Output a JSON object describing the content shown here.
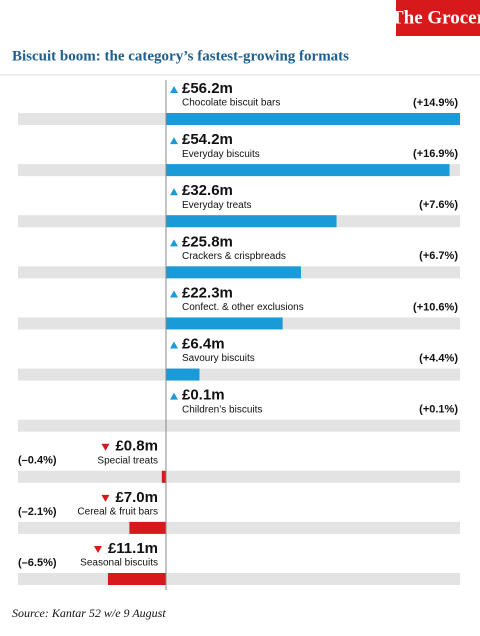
{
  "brand": "The Grocer",
  "source": "Source: Kantar 52 w/e 9 August",
  "chart_data": {
    "type": "bar",
    "orientation": "horizontal",
    "title": "Biscuit boom: the category’s fastest-growing formats",
    "categories": [
      "Chocolate biscuit bars",
      "Everyday biscuits",
      "Everyday treats",
      "Crackers & crispbreads",
      "Confect. & other exclusions",
      "Savoury biscuits",
      "Children’s biscuits",
      "Special treats",
      "Cereal & fruit bars",
      "Seasonal biscuits"
    ],
    "values": [
      56.2,
      54.2,
      32.6,
      25.8,
      22.3,
      6.4,
      0.1,
      -0.8,
      -7.0,
      -11.1
    ],
    "value_labels": [
      "£56.2m",
      "£54.2m",
      "£32.6m",
      "£25.8m",
      "£22.3m",
      "£6.4m",
      "£0.1m",
      "£0.8m",
      "£7.0m",
      "£11.1m"
    ],
    "growth": {
      "values": [
        14.9,
        16.9,
        7.6,
        6.7,
        10.6,
        4.4,
        0.1,
        -0.4,
        -2.1,
        -6.5
      ],
      "value_labels": [
        "(+14.9%)",
        "(+16.9%)",
        "(+7.6%)",
        "(+6.7%)",
        "(+10.6%)",
        "(+4.4%)",
        "(+0.1%)",
        "(–0.4%)",
        "(–2.1%)",
        "(–6.5%)"
      ]
    },
    "positive_color": "#1a9ad6",
    "negative_color": "#d7191c"
  }
}
